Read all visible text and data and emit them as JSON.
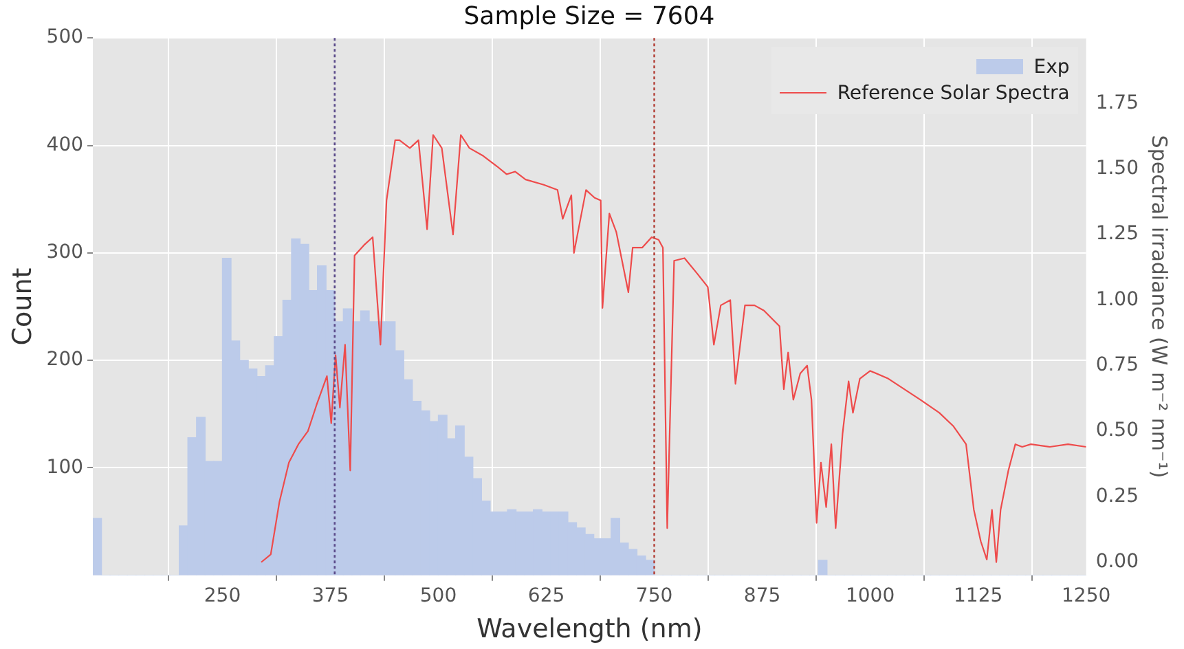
{
  "chart_data": {
    "type": "histogram",
    "title": "Sample Size = 7604",
    "xlabel": "Wavelength (nm)",
    "ylabel": "Count",
    "y2label": "Spectral irradiance (W m⁻² nm⁻¹)",
    "bins": [
      100,
      110,
      120,
      130,
      140,
      150,
      160,
      170,
      180,
      190,
      200,
      210,
      220,
      230,
      240,
      250,
      260,
      270,
      280,
      290,
      300,
      310,
      320,
      330,
      340,
      350,
      360,
      370,
      380,
      390,
      400,
      410,
      420,
      430,
      440,
      450,
      460,
      470,
      480,
      490,
      500,
      510,
      520,
      530,
      540,
      550,
      560,
      570,
      580,
      590,
      600,
      610,
      620,
      630,
      640,
      650,
      660,
      670,
      680,
      690,
      700,
      710,
      720,
      730,
      740,
      750,
      760,
      770,
      780,
      790,
      800,
      810,
      820,
      830,
      840,
      850,
      860,
      870,
      880,
      890,
      900,
      910,
      920,
      930,
      940,
      950,
      960,
      970,
      980,
      990,
      1000,
      1010,
      1020,
      1030,
      1040,
      1050,
      1060,
      1070,
      1080,
      1090,
      1100,
      1110,
      1120,
      1130,
      1140,
      1150,
      1160,
      1170,
      1180,
      1190,
      1200,
      1210,
      1220,
      1230,
      1240,
      1250
    ],
    "series": [
      {
        "name": "Exp",
        "type": "histogram",
        "color": "#bccbea",
        "values": [
          53,
          0,
          0,
          0,
          0,
          0,
          0,
          0,
          0,
          0,
          46,
          128,
          147,
          106,
          106,
          295,
          218,
          200,
          192,
          185,
          195,
          222,
          256,
          313,
          308,
          265,
          288,
          265,
          236,
          248,
          236,
          246,
          236,
          236,
          236,
          209,
          182,
          162,
          153,
          143,
          149,
          127,
          139,
          110,
          90,
          69,
          59,
          59,
          61,
          59,
          59,
          61,
          59,
          59,
          59,
          49,
          44,
          38,
          34,
          34,
          53,
          30,
          24,
          18,
          14,
          0,
          0,
          0,
          0,
          0,
          0,
          0,
          0,
          0,
          0,
          0,
          0,
          0,
          0,
          0,
          0,
          0,
          0,
          0,
          14,
          0,
          0,
          0,
          0,
          0,
          0,
          0,
          0,
          0,
          0,
          0,
          0,
          0,
          0,
          0,
          0,
          0,
          0,
          0,
          0,
          0,
          0,
          0,
          0,
          0,
          0,
          0,
          0,
          0,
          0
        ]
      },
      {
        "name": "Reference Solar Spectra",
        "type": "line",
        "axis": "y2",
        "color": "#ee4b4b",
        "x": [
          295,
          306,
          316,
          327,
          338,
          349,
          359,
          371,
          376,
          381,
          386,
          392,
          398,
          403,
          414,
          424,
          433,
          440,
          450,
          455,
          467,
          477,
          487,
          494,
          504,
          517,
          526,
          536,
          552,
          568,
          579,
          589,
          601,
          622,
          638,
          644,
          654,
          657,
          671,
          681,
          688,
          690,
          698,
          706,
          720,
          725,
          736,
          747,
          755,
          760,
          765,
          773,
          785,
          800,
          812,
          819,
          827,
          838,
          844,
          855,
          866,
          877,
          895,
          900,
          905,
          911,
          919,
          927,
          932,
          938,
          943,
          949,
          955,
          960,
          968,
          975,
          980,
          988,
          1000,
          1021,
          1058,
          1080,
          1096,
          1111,
          1120,
          1128,
          1135,
          1141,
          1146,
          1151,
          1160,
          1168,
          1176,
          1186,
          1208,
          1229,
          1250
        ],
        "values": [
          0,
          0.03,
          0.23,
          0.38,
          0.45,
          0.5,
          0.6,
          0.71,
          0.53,
          0.79,
          0.59,
          0.83,
          0.35,
          1.17,
          1.21,
          1.24,
          0.83,
          1.38,
          1.61,
          1.61,
          1.58,
          1.61,
          1.27,
          1.63,
          1.58,
          1.25,
          1.63,
          1.58,
          1.55,
          1.51,
          1.48,
          1.49,
          1.46,
          1.44,
          1.42,
          1.31,
          1.4,
          1.18,
          1.42,
          1.39,
          1.38,
          0.97,
          1.33,
          1.26,
          1.03,
          1.2,
          1.2,
          1.24,
          1.23,
          1.2,
          0.13,
          1.15,
          1.16,
          1.1,
          1.05,
          0.83,
          0.98,
          1,
          0.68,
          0.98,
          0.98,
          0.96,
          0.9,
          0.66,
          0.8,
          0.62,
          0.72,
          0.75,
          0.62,
          0.15,
          0.38,
          0.21,
          0.45,
          0.13,
          0.49,
          0.69,
          0.57,
          0.7,
          0.73,
          0.7,
          0.62,
          0.57,
          0.52,
          0.45,
          0.2,
          0.08,
          0.01,
          0.2,
          0,
          0.2,
          0.35,
          0.45,
          0.44,
          0.45,
          0.44,
          0.45,
          0.44
        ]
      }
    ],
    "xlim": [
      100,
      1250
    ],
    "xticks": [
      250,
      375,
      500,
      625,
      750,
      875,
      1000,
      1125,
      1250
    ],
    "ylim": [
      0,
      500
    ],
    "yticks": [
      100,
      200,
      300,
      400,
      500
    ],
    "y2lim": [
      -0.05,
      2.0
    ],
    "y2ticks": [
      {
        "value": 0,
        "label": "0.00"
      },
      {
        "value": 0.25,
        "label": "0.25"
      },
      {
        "value": 0.5,
        "label": "0.50"
      },
      {
        "value": 0.75,
        "label": "0.75"
      },
      {
        "value": 1,
        "label": "1.00"
      },
      {
        "value": 1.25,
        "label": "1.25"
      },
      {
        "value": 1.5,
        "label": "1.50"
      },
      {
        "value": 1.75,
        "label": "1.75"
      }
    ],
    "ref_lines": [
      {
        "axis": "x",
        "value": 380,
        "color": "#5b4b8a",
        "line_style": "dotted"
      },
      {
        "axis": "x",
        "value": 750,
        "color": "#b5473f",
        "line_style": "dotted"
      }
    ],
    "grid": true,
    "legend": "top right"
  }
}
